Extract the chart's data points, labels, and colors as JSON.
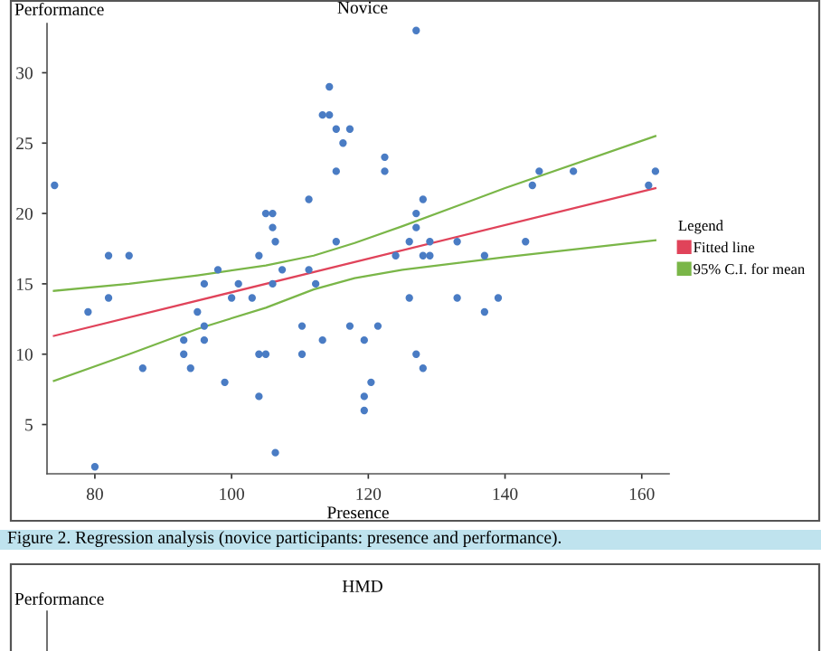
{
  "chart_data": [
    {
      "type": "scatter",
      "title": "Novice",
      "xlabel": "Presence",
      "ylabel": "Performance",
      "legend_title": "Legend",
      "xlim": [
        73,
        164
      ],
      "ylim": [
        1.5,
        33.5
      ],
      "xticks": [
        80,
        100,
        120,
        140,
        160
      ],
      "yticks": [
        5,
        10,
        15,
        20,
        25,
        30
      ],
      "legend": "right",
      "grid": false,
      "series": [
        {
          "type": "scatter",
          "color": "#4a7cc4",
          "x": [
            74.1,
            79,
            80,
            82,
            82,
            85,
            87,
            93,
            93,
            94,
            95,
            96,
            96,
            96,
            98,
            99,
            100,
            101,
            103,
            104,
            104,
            104,
            105,
            105,
            106,
            106,
            106,
            106.4,
            106.4,
            107.4,
            110.3,
            110.3,
            111.3,
            111.3,
            112.3,
            113.3,
            113.3,
            114.3,
            114.3,
            115.3,
            115.3,
            115.3,
            116.3,
            117.3,
            117.3,
            119.4,
            119.4,
            119.4,
            120.4,
            121.4,
            122.4,
            122.4,
            124,
            126,
            126,
            127,
            127,
            127,
            127,
            128,
            128,
            128,
            129,
            129,
            133,
            133,
            137,
            137,
            139,
            143,
            144,
            145,
            150,
            161,
            162
          ],
          "values": [
            22,
            13,
            2,
            17,
            14,
            17,
            9,
            11,
            10,
            9,
            13,
            15,
            12,
            11,
            16,
            8,
            14,
            15,
            14,
            17,
            10,
            7,
            20,
            10,
            20,
            19,
            15,
            18,
            3,
            16,
            12,
            10,
            21,
            16,
            15,
            11,
            27,
            27,
            29,
            26,
            23,
            18,
            25,
            26,
            12,
            11,
            7,
            6,
            8,
            12,
            24,
            23,
            17,
            18,
            14,
            33,
            20,
            19,
            10,
            21,
            17,
            9,
            18,
            17,
            18,
            14,
            17,
            13,
            14,
            18,
            22,
            23,
            23,
            22,
            23
          ]
        },
        {
          "type": "line",
          "name": "Fitted line",
          "color": "#e0435a",
          "x": [
            74,
            162
          ],
          "values": [
            11.3,
            21.8
          ]
        },
        {
          "type": "line",
          "name": "95% C.I. for mean",
          "color": "#7ab648",
          "x": [
            74,
            85,
            95,
            105,
            112,
            118,
            125,
            140,
            162
          ],
          "values": [
            14.5,
            15.0,
            15.6,
            16.3,
            17.0,
            17.9,
            19.1,
            21.8,
            25.5
          ]
        },
        {
          "type": "line",
          "color": "#7ab648",
          "x": [
            74,
            85,
            95,
            105,
            112,
            118,
            125,
            140,
            162
          ],
          "values": [
            8.1,
            10.0,
            11.8,
            13.3,
            14.6,
            15.4,
            16.0,
            16.9,
            18.1
          ]
        }
      ],
      "annotations": [
        "Figure 2. Regression analysis (novice participants: presence and performance)."
      ]
    },
    {
      "type": "other",
      "title": "HMD",
      "ylabel": "Performance"
    }
  ]
}
